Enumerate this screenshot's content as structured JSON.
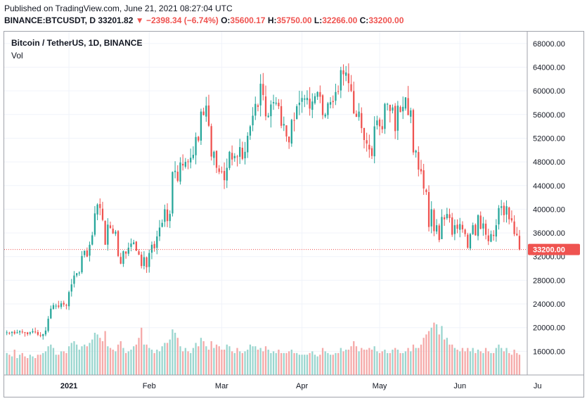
{
  "header": {
    "published": "Published on TradingView.com, June 21, 2021 08:27:04 UTC",
    "symbol": "BINANCE:BTCUSDT, D",
    "last": "33201.82",
    "arrow": "▼",
    "change": "−2398.34 (−6.74%)",
    "o_label": "O:",
    "o_value": "35600.17",
    "h_label": "H:",
    "h_value": "35750.00",
    "l_label": "L:",
    "l_value": "32266.00",
    "c_label": "C:",
    "c_value": "33200.00"
  },
  "legend": {
    "title": "Bitcoin / TetherUS, 1D, BINANCE",
    "vol": "Vol"
  },
  "colors": {
    "up": "#26a69a",
    "down": "#ef5350",
    "up_vol": "#9ad6cf",
    "down_vol": "#f5a9a8",
    "grid": "#f0f3fa",
    "price_line": "#ef5350"
  },
  "chart_data": {
    "type": "candlestick",
    "x_range": [
      "2020-12-07",
      "2021-06-27"
    ],
    "ylim": [
      12000,
      70000
    ],
    "y_ticks": [
      16000,
      20000,
      24000,
      28000,
      32000,
      36000,
      40000,
      44000,
      48000,
      52000,
      56000,
      60000,
      64000,
      68000
    ],
    "y_tick_labels": [
      "16000.00",
      "20000.00",
      "24000.00",
      "28000.00",
      "32000.00",
      "36000.00",
      "40000.00",
      "44000.00",
      "48000.00",
      "52000.00",
      "56000.00",
      "60000.00",
      "64000.00",
      "68000.00"
    ],
    "x_ticks": [
      {
        "date": "2021-01-01",
        "label": "2021"
      },
      {
        "date": "2021-02-01",
        "label": "Feb"
      },
      {
        "date": "2021-03-01",
        "label": "Mar"
      },
      {
        "date": "2021-04-01",
        "label": "Apr"
      },
      {
        "date": "2021-05-01",
        "label": "May"
      },
      {
        "date": "2021-06-01",
        "label": "Jun"
      },
      {
        "date": "2021-07-01",
        "label": "Ju"
      }
    ],
    "last_price": 33200,
    "last_price_label": "33200.00",
    "start_date": "2020-12-08",
    "close_path": [
      19200,
      19100,
      19300,
      19000,
      19200,
      19400,
      19300,
      19100,
      18900,
      19200,
      19400,
      19300,
      18800,
      18600,
      18900,
      19500,
      21500,
      23200,
      23800,
      23700,
      23500,
      24100,
      23900,
      23700,
      26000,
      27300,
      28800,
      29200,
      29300,
      32100,
      33000,
      32000,
      34000,
      35600,
      39300,
      40800,
      40200,
      38200,
      34000,
      37400,
      36800,
      35900,
      36200,
      32100,
      30800,
      32900,
      32500,
      33500,
      34200,
      34400,
      33000,
      32300,
      30400,
      31900,
      30200,
      32600,
      34000,
      33400,
      35400,
      36900,
      37700,
      40000,
      38000,
      39200,
      46300,
      46500,
      44800,
      47900,
      47400,
      48000,
      48000,
      48700,
      49200,
      52200,
      51600,
      56500,
      55900,
      57500,
      54100,
      48900,
      49700,
      47000,
      46300,
      46400,
      44900,
      47000,
      49700,
      48400,
      49000,
      48800,
      50500,
      48500,
      49700,
      52400,
      54000,
      55800,
      57800,
      57300,
      61200,
      59300,
      55700,
      55800,
      57700,
      58100,
      58000,
      57400,
      54100,
      54400,
      52300,
      51300,
      55100,
      55000,
      57400,
      58000,
      58800,
      58700,
      58800,
      57000,
      58200,
      59100,
      59800,
      59000,
      55900,
      56000,
      57900,
      58100,
      58100,
      59800,
      59900,
      63500,
      62800,
      63100,
      61300,
      60000,
      56200,
      55600,
      56500,
      53700,
      51700,
      51100,
      50100,
      49000,
      54000,
      55000,
      54000,
      53500,
      57800,
      57800,
      56600,
      57200,
      53200,
      57500,
      56400,
      57300,
      58900,
      55900,
      56700,
      49600,
      49900,
      46700,
      46400,
      43500,
      42900,
      37000,
      40000,
      36300,
      37300,
      34800,
      38700,
      38300,
      39200,
      38500,
      35700,
      37300,
      36700,
      37500,
      36600,
      35800,
      33500,
      35800,
      37300,
      35600,
      39000,
      36700,
      37600,
      35700,
      34600,
      35800,
      35500,
      37300,
      40200,
      40500,
      39000,
      40500,
      38300,
      38100,
      35800,
      35600,
      33200
    ],
    "volume_path": [
      13,
      12,
      11,
      15,
      10,
      12,
      13,
      11,
      10,
      12,
      11,
      10,
      12,
      12,
      13,
      14,
      17,
      18,
      16,
      12,
      12,
      14,
      14,
      13,
      17,
      19,
      20,
      18,
      15,
      17,
      18,
      17,
      19,
      21,
      25,
      24,
      22,
      20,
      26,
      17,
      16,
      15,
      14,
      18,
      20,
      16,
      13,
      14,
      15,
      17,
      18,
      22,
      28,
      18,
      18,
      16,
      15,
      13,
      15,
      14,
      17,
      19,
      19,
      21,
      27,
      25,
      22,
      17,
      14,
      16,
      14,
      13,
      16,
      19,
      17,
      22,
      20,
      17,
      15,
      20,
      16,
      18,
      17,
      15,
      15,
      18,
      17,
      14,
      13,
      16,
      14,
      13,
      14,
      15,
      18,
      17,
      17,
      15,
      16,
      14,
      17,
      15,
      13,
      14,
      13,
      15,
      13,
      13,
      13,
      14,
      15,
      13,
      13,
      12,
      12,
      12,
      12,
      13,
      14,
      12,
      11,
      12,
      16,
      14,
      13,
      12,
      12,
      13,
      13,
      16,
      14,
      15,
      15,
      17,
      20,
      17,
      14,
      16,
      15,
      15,
      16,
      15,
      17,
      14,
      13,
      14,
      15,
      13,
      13,
      15,
      16,
      15,
      13,
      13,
      14,
      16,
      14,
      18,
      16,
      16,
      18,
      22,
      24,
      26,
      28,
      31,
      30,
      24,
      29,
      21,
      22,
      18,
      18,
      16,
      15,
      14,
      16,
      14,
      16,
      14,
      16,
      13,
      15,
      14,
      13,
      16,
      14,
      13,
      13,
      16,
      18,
      16,
      14,
      16,
      13,
      12,
      15,
      13,
      12
    ]
  }
}
